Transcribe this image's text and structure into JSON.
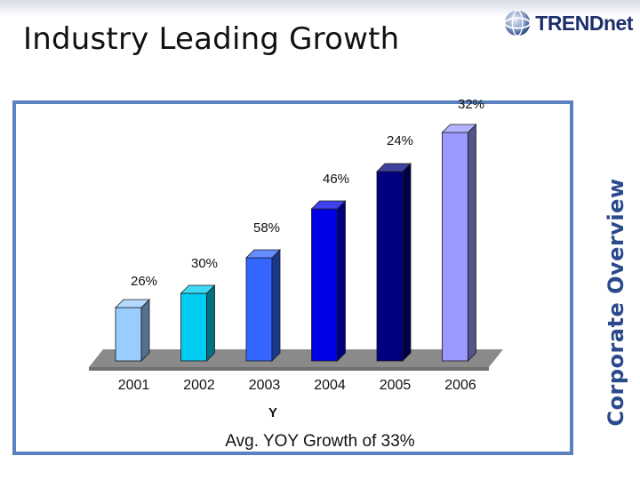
{
  "slide": {
    "title": "Industry Leading Growth",
    "logo_text": "TRENDnet",
    "side_label": "Corporate Overview",
    "footnote": "Avg. YOY Growth of 33%"
  },
  "colors": {
    "frame": "#5b82c0",
    "floor": "#8a8a8a",
    "side_text": "#2a4a8c"
  },
  "chart_data": {
    "type": "bar",
    "title": "",
    "xlabel": "Y",
    "ylabel": "",
    "categories": [
      "2001",
      "2002",
      "2003",
      "2004",
      "2005",
      "2006"
    ],
    "values": [
      60,
      76,
      116,
      171,
      213,
      257
    ],
    "ylim": [
      0,
      270
    ],
    "data_labels": [
      "26%",
      "30%",
      "58%",
      "46%",
      "24%",
      "32%"
    ],
    "bar_colors": [
      "#99ccff",
      "#00ccf2",
      "#3366ff",
      "#0000e6",
      "#000080",
      "#9999ff"
    ],
    "grid": false,
    "legend": "none"
  }
}
